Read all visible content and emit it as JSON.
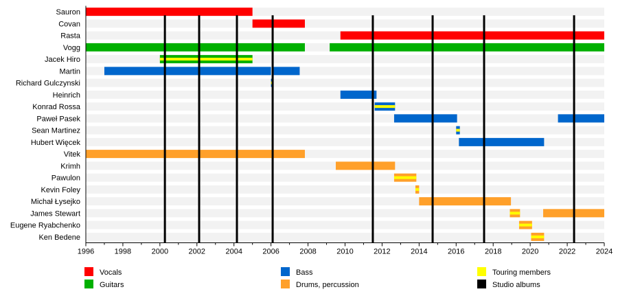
{
  "chart_data": {
    "type": "timeline",
    "xlim": [
      1996,
      2024
    ],
    "x_ticks": [
      "1996",
      "1998",
      "2000",
      "2002",
      "2004",
      "2006",
      "2008",
      "2010",
      "2012",
      "2014",
      "2016",
      "2018",
      "2020",
      "2022",
      "2024"
    ],
    "roles": {
      "vocals": {
        "label": "Vocals",
        "color": "#ff0000"
      },
      "guitars": {
        "label": "Guitars",
        "color": "#00b000"
      },
      "bass": {
        "label": "Bass",
        "color": "#0066cc"
      },
      "drums": {
        "label": "Drums, percussion",
        "color": "#ffa02a"
      },
      "touring": {
        "label": "Touring members",
        "color": "#ffff00"
      },
      "albums": {
        "label": "Studio albums",
        "color": "#000000"
      }
    },
    "members": [
      {
        "name": "Sauron",
        "periods": [
          {
            "role": "vocals",
            "start": 1996.0,
            "end": 2005.0
          }
        ]
      },
      {
        "name": "Covan",
        "periods": [
          {
            "role": "vocals",
            "start": 2005.0,
            "end": 2007.83
          }
        ]
      },
      {
        "name": "Rasta",
        "periods": [
          {
            "role": "vocals",
            "start": 2009.75,
            "end": 2024.0
          }
        ]
      },
      {
        "name": "Vogg",
        "periods": [
          {
            "role": "guitars",
            "start": 1996.0,
            "end": 2007.83
          },
          {
            "role": "guitars",
            "start": 2009.17,
            "end": 2024.0
          }
        ]
      },
      {
        "name": "Jacek Hiro",
        "periods": [
          {
            "role": "guitars",
            "start": 2000.0,
            "end": 2005.0,
            "touring": true
          }
        ]
      },
      {
        "name": "Martin",
        "periods": [
          {
            "role": "bass",
            "start": 1997.0,
            "end": 2006.0
          },
          {
            "role": "bass",
            "start": 2006.1,
            "end": 2007.55
          }
        ]
      },
      {
        "name": "Richard Gulczynski",
        "periods": [
          {
            "role": "bass",
            "start": 2006.0,
            "end": 2006.1,
            "touring": true
          }
        ]
      },
      {
        "name": "Heinrich",
        "periods": [
          {
            "role": "bass",
            "start": 2009.75,
            "end": 2011.7
          }
        ]
      },
      {
        "name": "Konrad Rossa",
        "periods": [
          {
            "role": "bass",
            "start": 2011.6,
            "end": 2012.7,
            "touring": true
          }
        ]
      },
      {
        "name": "Paweł Pasek",
        "periods": [
          {
            "role": "bass",
            "start": 2012.65,
            "end": 2016.05
          },
          {
            "role": "bass",
            "start": 2021.5,
            "end": 2024.0
          }
        ]
      },
      {
        "name": "Sean Martinez",
        "periods": [
          {
            "role": "bass",
            "start": 2016.0,
            "end": 2016.2,
            "touring": true
          }
        ]
      },
      {
        "name": "Hubert Więcek",
        "periods": [
          {
            "role": "bass",
            "start": 2016.15,
            "end": 2020.75
          }
        ]
      },
      {
        "name": "Vitek",
        "periods": [
          {
            "role": "drums",
            "start": 1996.0,
            "end": 2007.83
          }
        ]
      },
      {
        "name": "Krimh",
        "periods": [
          {
            "role": "drums",
            "start": 2009.5,
            "end": 2012.7
          }
        ]
      },
      {
        "name": "Pawulon",
        "periods": [
          {
            "role": "drums",
            "start": 2012.65,
            "end": 2013.85,
            "touring": true
          }
        ]
      },
      {
        "name": "Kevin Foley",
        "periods": [
          {
            "role": "drums",
            "start": 2013.8,
            "end": 2014.0,
            "touring": true
          }
        ]
      },
      {
        "name": "Michał Łysejko",
        "periods": [
          {
            "role": "drums",
            "start": 2014.0,
            "end": 2018.96
          }
        ]
      },
      {
        "name": "James Stewart",
        "periods": [
          {
            "role": "drums",
            "start": 2018.9,
            "end": 2019.45,
            "touring": true
          },
          {
            "role": "drums",
            "start": 2020.7,
            "end": 2024.0
          }
        ]
      },
      {
        "name": "Eugene Ryabchenko",
        "periods": [
          {
            "role": "drums",
            "start": 2019.4,
            "end": 2020.1,
            "touring": true
          }
        ]
      },
      {
        "name": "Ken Bedene",
        "periods": [
          {
            "role": "drums",
            "start": 2020.05,
            "end": 2020.75,
            "touring": true
          }
        ]
      }
    ],
    "albums": [
      2000.27,
      2002.12,
      2004.16,
      2006.09,
      2011.5,
      2014.73,
      2017.51,
      2022.37
    ],
    "legend": [
      {
        "key": "vocals",
        "label": "Vocals"
      },
      {
        "key": "guitars",
        "label": "Guitars"
      },
      {
        "key": "bass",
        "label": "Bass"
      },
      {
        "key": "drums",
        "label": "Drums, percussion"
      },
      {
        "key": "touring",
        "label": "Touring members"
      },
      {
        "key": "albums",
        "label": "Studio albums"
      }
    ],
    "legend_placement": "bottom",
    "grid": false
  }
}
